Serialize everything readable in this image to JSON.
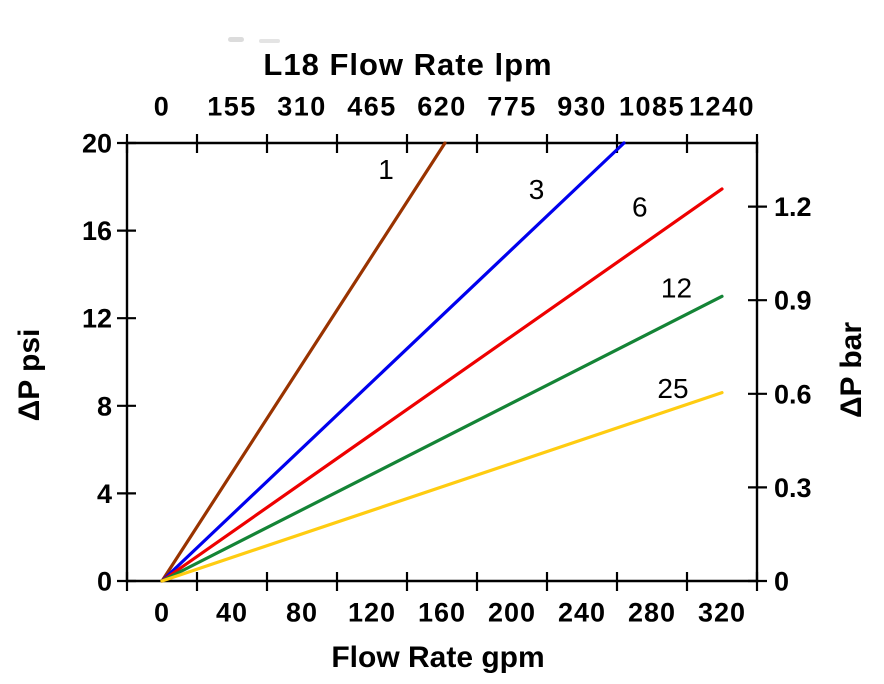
{
  "background_color": "#ffffff",
  "text_color": "#000000",
  "chart_data": {
    "type": "line",
    "title": "L18 Flow Rate lpm",
    "xlabel": "Flow Rate gpm",
    "xlabel_top": "L18 Flow Rate lpm",
    "ylabel": "ΔP psi",
    "ylabel_right": "ΔP bar",
    "grid": false,
    "legend": "inline numeric labels beside each line",
    "axes": {
      "top": {
        "label": "L18 Flow Rate lpm",
        "unit": "lpm",
        "tick_labels": [
          "0",
          "155",
          "310",
          "465",
          "620",
          "775",
          "930",
          "1085",
          "1240"
        ],
        "tick_values": [
          0,
          155,
          310,
          465,
          620,
          775,
          930,
          1085,
          1240
        ]
      },
      "bottom": {
        "label": "Flow Rate gpm",
        "unit": "gpm",
        "tick_labels": [
          "0",
          "40",
          "80",
          "120",
          "160",
          "200",
          "240",
          "280",
          "320"
        ],
        "tick_values": [
          0,
          40,
          80,
          120,
          160,
          200,
          240,
          280,
          320
        ]
      },
      "left": {
        "label": "ΔP psi",
        "unit": "psi",
        "tick_labels": [
          "0",
          "4",
          "8",
          "12",
          "16",
          "20"
        ],
        "tick_values": [
          0,
          4,
          8,
          12,
          16,
          20
        ],
        "range": [
          0,
          20
        ]
      },
      "right": {
        "label": "ΔP bar",
        "unit": "bar",
        "tick_labels": [
          "0",
          "0.3",
          "0.6",
          "0.9",
          "1.2"
        ],
        "tick_values": [
          0,
          0.3,
          0.6,
          0.9,
          1.2
        ]
      }
    },
    "series": [
      {
        "name": "1",
        "color": "#993300",
        "points_gpm_psi": [
          [
            0,
            0
          ],
          [
            161.7,
            20
          ]
        ],
        "slope_psi_per_gpm": 0.1237,
        "label_at": {
          "gpm": 128,
          "psi": 18.8
        }
      },
      {
        "name": "3",
        "color": "#0000ee",
        "points_gpm_psi": [
          [
            0,
            0
          ],
          [
            264,
            20
          ]
        ],
        "slope_psi_per_gpm": 0.0758,
        "label_at": {
          "gpm": 214,
          "psi": 17.9
        }
      },
      {
        "name": "6",
        "color": "#ee0000",
        "points_gpm_psi": [
          [
            0,
            0
          ],
          [
            320,
            17.9
          ]
        ],
        "slope_psi_per_gpm": 0.0559,
        "label_at": {
          "gpm": 273,
          "psi": 17.1
        }
      },
      {
        "name": "12",
        "color": "#148436",
        "points_gpm_psi": [
          [
            0,
            0
          ],
          [
            320,
            13.0
          ]
        ],
        "slope_psi_per_gpm": 0.0406,
        "label_at": {
          "gpm": 294,
          "psi": 13.4
        }
      },
      {
        "name": "25",
        "color": "#ffcc11",
        "points_gpm_psi": [
          [
            0,
            0
          ],
          [
            320,
            8.6
          ]
        ],
        "slope_psi_per_gpm": 0.0268,
        "label_at": {
          "gpm": 292,
          "psi": 8.8
        }
      }
    ]
  }
}
